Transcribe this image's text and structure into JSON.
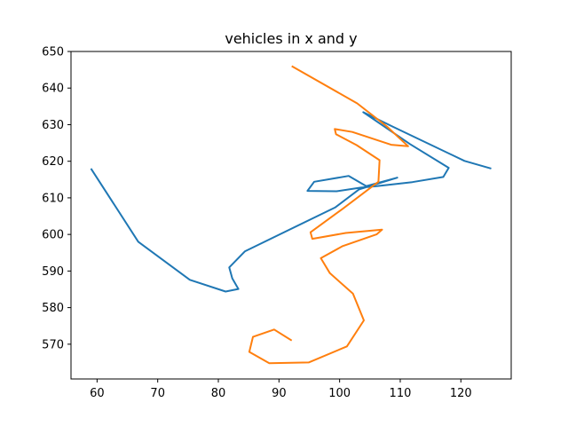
{
  "chart_data": {
    "type": "line",
    "title": "vehicles in x and y",
    "xlabel": "",
    "ylabel": "",
    "xlim": [
      55.7,
      128.3
    ],
    "ylim": [
      560.5,
      650
    ],
    "xticks": [
      60,
      70,
      80,
      90,
      100,
      110,
      120
    ],
    "yticks": [
      570,
      580,
      590,
      600,
      610,
      620,
      630,
      640,
      650
    ],
    "grid": false,
    "legend": "none",
    "series": [
      {
        "color": "#1f77b4",
        "points": [
          [
            59,
            618
          ],
          [
            66.8,
            598
          ],
          [
            75.3,
            587.6
          ],
          [
            81.2,
            584.4
          ],
          [
            83.3,
            585.1
          ],
          [
            82.3,
            588
          ],
          [
            81.8,
            591
          ],
          [
            84.4,
            595.4
          ],
          [
            99.3,
            607.4
          ],
          [
            103.2,
            612.3
          ],
          [
            109.5,
            615.5
          ],
          [
            104.4,
            613.2
          ],
          [
            101.5,
            616
          ],
          [
            95.8,
            614.4
          ],
          [
            94.7,
            611.9
          ],
          [
            99.5,
            611.8
          ],
          [
            103.5,
            612.8
          ],
          [
            106.1,
            613.2
          ],
          [
            112,
            614.3
          ],
          [
            117.1,
            615.7
          ],
          [
            118,
            618.2
          ],
          [
            111.6,
            624.7
          ],
          [
            103.9,
            633.4
          ],
          [
            108.7,
            629.5
          ],
          [
            120.6,
            620.1
          ],
          [
            125,
            618
          ]
        ]
      },
      {
        "color": "#ff7f0e",
        "points": [
          [
            92.1,
            571
          ],
          [
            89.2,
            574
          ],
          [
            85.7,
            572
          ],
          [
            85.1,
            567.9
          ],
          [
            88.4,
            564.8
          ],
          [
            94.9,
            565
          ],
          [
            101.2,
            569.4
          ],
          [
            104,
            576.5
          ],
          [
            102.2,
            583.8
          ],
          [
            98.4,
            589.4
          ],
          [
            96.9,
            593.5
          ],
          [
            100.5,
            596.8
          ],
          [
            106.1,
            600
          ],
          [
            107,
            601.3
          ],
          [
            101,
            600.4
          ],
          [
            95.5,
            598.8
          ],
          [
            95.2,
            600.6
          ],
          [
            100.5,
            607
          ],
          [
            106.4,
            614.4
          ],
          [
            106.6,
            620.3
          ],
          [
            102.8,
            624.4
          ],
          [
            99.4,
            627.4
          ],
          [
            99.2,
            628.8
          ],
          [
            102.1,
            628
          ],
          [
            108.5,
            624.5
          ],
          [
            111.3,
            624.1
          ],
          [
            107.8,
            629.5
          ],
          [
            102.9,
            635.8
          ],
          [
            92.1,
            646
          ]
        ]
      }
    ]
  }
}
